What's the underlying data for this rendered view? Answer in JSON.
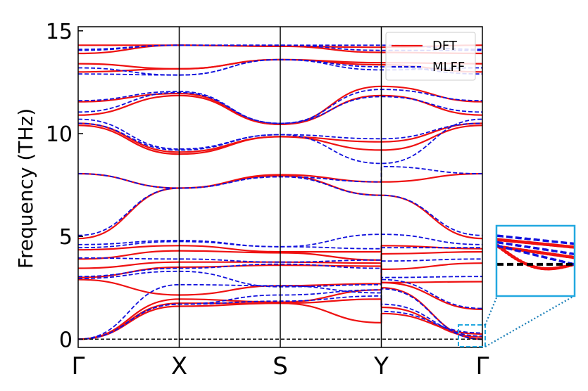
{
  "colors": {
    "dft": "#ee1111",
    "mlff": "#1111dd",
    "zero_line": "#000000",
    "inset_frame": "#22a8e0"
  },
  "chart_data": {
    "type": "line",
    "title": "",
    "xlabel": "",
    "ylabel": "Frequency (THz)",
    "ylim": [
      -0.4,
      15.2
    ],
    "xlim": [
      0,
      4
    ],
    "grid": false,
    "legend_position": "top-right",
    "x_ticks": [
      {
        "x": 0,
        "label": "Γ"
      },
      {
        "x": 1,
        "label": "X"
      },
      {
        "x": 2,
        "label": "S"
      },
      {
        "x": 3,
        "label": "Y"
      },
      {
        "x": 4,
        "label": "Γ"
      }
    ],
    "y_ticks": [
      {
        "y": 0,
        "label": "0"
      },
      {
        "y": 5,
        "label": "5"
      },
      {
        "y": 10,
        "label": "10"
      },
      {
        "y": 15,
        "label": "15"
      }
    ],
    "reference_line": {
      "y": 0,
      "style": "dashed"
    },
    "series": [
      {
        "name": "DFT",
        "style": "solid",
        "bands": [
          [
            0.0,
            1.6,
            1.75,
            0.8,
            1.25,
            0.25
          ],
          [
            0.0,
            1.75,
            1.75,
            1.95,
            1.55,
            0.1
          ],
          [
            0.0,
            1.95,
            1.8,
            2.4,
            2.5,
            0.0
          ],
          [
            2.9,
            2.15,
            2.6,
            2.7,
            2.75,
            1.45
          ],
          [
            3.0,
            3.5,
            3.6,
            3.55,
            2.75,
            2.8
          ],
          [
            3.45,
            3.75,
            3.75,
            3.7,
            3.4,
            3.7
          ],
          [
            3.9,
            4.3,
            4.2,
            3.85,
            4.15,
            4.25
          ],
          [
            4.35,
            4.55,
            4.25,
            4.25,
            4.55,
            4.4
          ],
          [
            4.9,
            7.35,
            7.95,
            7.0,
            7.0,
            4.9
          ],
          [
            8.05,
            7.35,
            8.0,
            7.65,
            7.65,
            8.05
          ],
          [
            10.4,
            9.0,
            9.85,
            9.2,
            9.2,
            10.4
          ],
          [
            10.5,
            9.1,
            9.85,
            9.6,
            9.6,
            10.5
          ],
          [
            10.9,
            11.85,
            10.45,
            11.85,
            11.85,
            10.9
          ],
          [
            11.55,
            11.95,
            10.45,
            12.3,
            12.3,
            11.55
          ],
          [
            13.0,
            13.15,
            13.6,
            13.35,
            13.35,
            13.0
          ],
          [
            13.4,
            13.15,
            13.6,
            13.45,
            13.45,
            13.4
          ],
          [
            13.9,
            14.3,
            14.25,
            13.95,
            13.95,
            13.9
          ],
          [
            14.3,
            14.3,
            14.25,
            14.2,
            14.2,
            14.3
          ]
        ]
      },
      {
        "name": "MLFF",
        "style": "dashed",
        "bands": [
          [
            0.0,
            1.7,
            1.85,
            2.1,
            1.35,
            0.3
          ],
          [
            0.0,
            1.7,
            2.15,
            2.4,
            1.7,
            0.15
          ],
          [
            0.0,
            2.65,
            2.6,
            2.25,
            2.45,
            0.0
          ],
          [
            2.95,
            3.3,
            2.55,
            2.65,
            2.9,
            1.5
          ],
          [
            3.05,
            3.45,
            3.65,
            3.45,
            3.0,
            3.05
          ],
          [
            3.95,
            3.9,
            3.75,
            3.85,
            3.8,
            3.9
          ],
          [
            4.45,
            4.75,
            4.5,
            4.4,
            4.45,
            4.45
          ],
          [
            4.6,
            4.8,
            4.5,
            5.1,
            5.1,
            4.6
          ],
          [
            5.05,
            7.35,
            7.9,
            7.0,
            7.0,
            5.05
          ],
          [
            8.05,
            7.35,
            7.9,
            7.65,
            8.4,
            8.05
          ],
          [
            10.5,
            9.2,
            9.95,
            9.75,
            9.75,
            10.5
          ],
          [
            10.7,
            9.25,
            9.95,
            8.55,
            8.55,
            10.7
          ],
          [
            11.05,
            12.0,
            10.5,
            11.8,
            11.8,
            11.05
          ],
          [
            11.6,
            12.05,
            10.5,
            12.15,
            12.15,
            11.6
          ],
          [
            12.9,
            12.85,
            13.6,
            13.25,
            13.25,
            12.9
          ],
          [
            13.2,
            12.85,
            13.6,
            13.1,
            13.1,
            13.2
          ],
          [
            14.05,
            14.3,
            14.3,
            14.05,
            14.05,
            14.05
          ],
          [
            14.1,
            14.3,
            14.3,
            14.3,
            14.3,
            14.1
          ]
        ]
      }
    ],
    "band_sample_x": [
      0,
      1,
      2,
      2.999,
      3.001,
      4
    ]
  }
}
